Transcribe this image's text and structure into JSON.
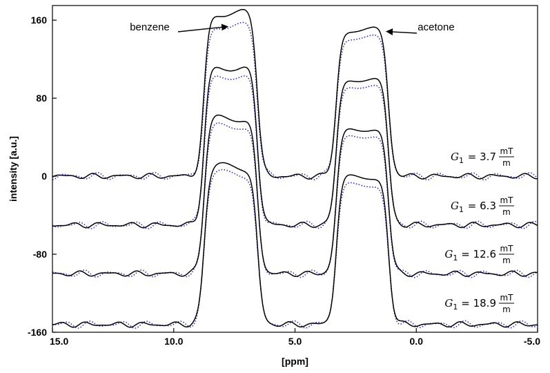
{
  "chart_data": {
    "type": "line",
    "title": "",
    "xlabel": "[ppm]",
    "ylabel": "intensity [a.u.]",
    "xlim": [
      15.0,
      -5.0
    ],
    "ylim": [
      -160,
      175
    ],
    "x_reversed": true,
    "xticks": [
      "15.0",
      "10.0",
      "5.0",
      "0.0",
      "-5.0"
    ],
    "xtick_values": [
      15,
      10,
      5,
      0,
      -5
    ],
    "yticks": [
      "160",
      "80",
      "0",
      "-80",
      "-160"
    ],
    "ytick_values": [
      160,
      80,
      0,
      -80,
      -160
    ],
    "grid": false,
    "annotations": [
      {
        "text": "benzene",
        "points_to_ppm": 7.8,
        "points_to_intensity": 125
      },
      {
        "text": "acetone",
        "points_to_ppm": 1.2,
        "points_to_intensity": 120
      }
    ],
    "series_styles": {
      "measured": {
        "color": "#000000",
        "dash": "solid"
      },
      "simulated": {
        "color": "#2b2bdb",
        "dash": "dotted"
      }
    },
    "traces": [
      {
        "label_var": "G",
        "label_sub": "1",
        "label_eq": "= 3.7",
        "unit_num": "mT",
        "unit_den": "m",
        "baseline": 0,
        "benzene_peak_measured": 168,
        "benzene_peak_simulated": 155,
        "acetone_peak_measured": 151,
        "acetone_peak_simulated": 143
      },
      {
        "label_var": "G",
        "label_sub": "1",
        "label_eq": "= 6.3",
        "unit_num": "mT",
        "unit_den": "m",
        "baseline": -50,
        "benzene_peak_measured": 112,
        "benzene_peak_simulated": 103,
        "acetone_peak_measured": 100,
        "acetone_peak_simulated": 93
      },
      {
        "label_var": "G",
        "label_sub": "1",
        "label_eq": "= 12.6",
        "unit_num": "mT",
        "unit_den": "m",
        "baseline": -100,
        "benzene_peak_measured": 60,
        "benzene_peak_simulated": 52,
        "acetone_peak_measured": 49,
        "acetone_peak_simulated": 42
      },
      {
        "label_var": "G",
        "label_sub": "1",
        "label_eq": "= 18.9",
        "unit_num": "mT",
        "unit_den": "m",
        "baseline": -152,
        "benzene_peak_measured": 10,
        "benzene_peak_simulated": 3,
        "acetone_peak_measured": 0,
        "acetone_peak_simulated": -8
      }
    ]
  }
}
